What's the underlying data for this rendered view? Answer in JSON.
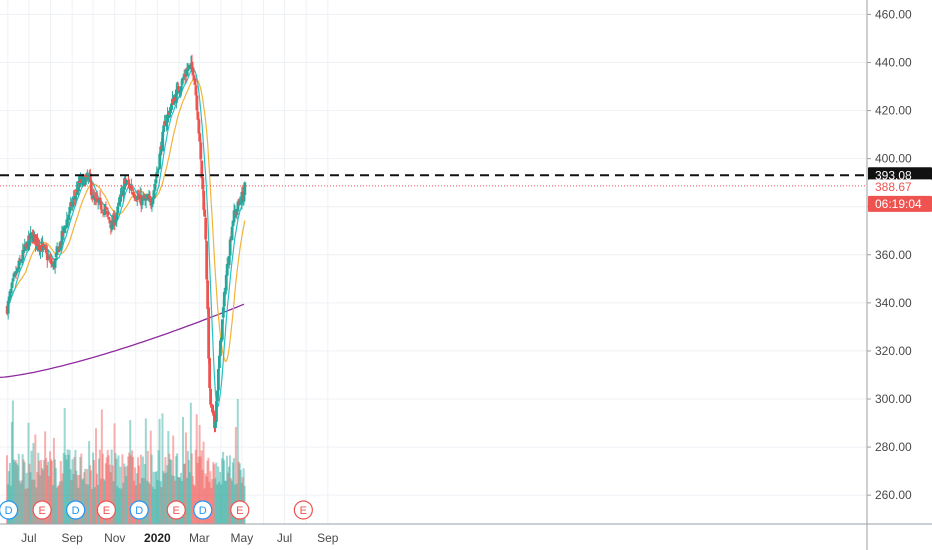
{
  "colors": {
    "up": "#26a69a",
    "down": "#ef5350",
    "ma_fast": "#27c1c4",
    "ma_slow": "#f2b338",
    "ma_long": "#8e2a9e",
    "grid": "#eef1f6",
    "resistance": "#111111",
    "last_price": "#ef5350",
    "dividend": "#2196f3",
    "earnings": "#ef5350"
  },
  "chart_data": {
    "type": "candlestick",
    "y_axis": {
      "min": 248,
      "max": 466,
      "ticks": [
        "460.00",
        "440.00",
        "420.00",
        "400.00",
        "380.00",
        "360.00",
        "340.00",
        "320.00",
        "300.00",
        "280.00",
        "260.00"
      ]
    },
    "x_axis": {
      "labels": [
        "Jul",
        "Sep",
        "Nov",
        "2020",
        "Mar",
        "May",
        "Jul",
        "Sep"
      ],
      "bold_label": "2020"
    },
    "resistance_level": 393.08,
    "resistance_label": "393.08",
    "last_price": 388.67,
    "last_price_label": "388.67",
    "countdown_label": "06:19:04",
    "moving_averages": [
      {
        "key": "fast",
        "color_key": "ma_fast"
      },
      {
        "key": "slow",
        "color_key": "ma_slow"
      },
      {
        "key": "long",
        "color_key": "ma_long"
      }
    ],
    "events": [
      {
        "type": "dividend",
        "label": "D",
        "date": "2019-06-02"
      },
      {
        "type": "earnings",
        "label": "E",
        "date": "2019-07-20"
      },
      {
        "type": "dividend",
        "label": "D",
        "date": "2019-09-06"
      },
      {
        "type": "earnings",
        "label": "E",
        "date": "2019-10-20"
      },
      {
        "type": "dividend",
        "label": "D",
        "date": "2019-12-06"
      },
      {
        "type": "earnings",
        "label": "E",
        "date": "2020-01-28"
      },
      {
        "type": "dividend",
        "label": "D",
        "date": "2020-03-06"
      },
      {
        "type": "earnings",
        "label": "E",
        "date": "2020-04-28"
      },
      {
        "type": "earnings",
        "label": "E",
        "date": "2020-07-28"
      }
    ],
    "price_path": [
      [
        "2019-05-31",
        338
      ],
      [
        "2019-06-10",
        350
      ],
      [
        "2019-06-25",
        362
      ],
      [
        "2019-07-05",
        368
      ],
      [
        "2019-07-20",
        363
      ],
      [
        "2019-08-05",
        355
      ],
      [
        "2019-08-15",
        365
      ],
      [
        "2019-08-28",
        378
      ],
      [
        "2019-09-12",
        390
      ],
      [
        "2019-09-25",
        392
      ],
      [
        "2019-10-02",
        382
      ],
      [
        "2019-10-15",
        380
      ],
      [
        "2019-10-28",
        372
      ],
      [
        "2019-11-05",
        378
      ],
      [
        "2019-11-15",
        390
      ],
      [
        "2019-11-25",
        388
      ],
      [
        "2019-12-05",
        383
      ],
      [
        "2019-12-15",
        382
      ],
      [
        "2019-12-23",
        382
      ],
      [
        "2020-01-01",
        395
      ],
      [
        "2020-01-12",
        415
      ],
      [
        "2020-01-25",
        425
      ],
      [
        "2020-02-05",
        432
      ],
      [
        "2020-02-15",
        438
      ],
      [
        "2020-02-22",
        437
      ],
      [
        "2020-02-28",
        418
      ],
      [
        "2020-03-04",
        395
      ],
      [
        "2020-03-10",
        370
      ],
      [
        "2020-03-16",
        300
      ],
      [
        "2020-03-23",
        288
      ],
      [
        "2020-03-30",
        318
      ],
      [
        "2020-04-08",
        350
      ],
      [
        "2020-04-18",
        375
      ],
      [
        "2020-04-25",
        380
      ],
      [
        "2020-05-04",
        386
      ],
      [
        "2020-05-06",
        389
      ]
    ],
    "volume": {
      "max": 300
    }
  }
}
